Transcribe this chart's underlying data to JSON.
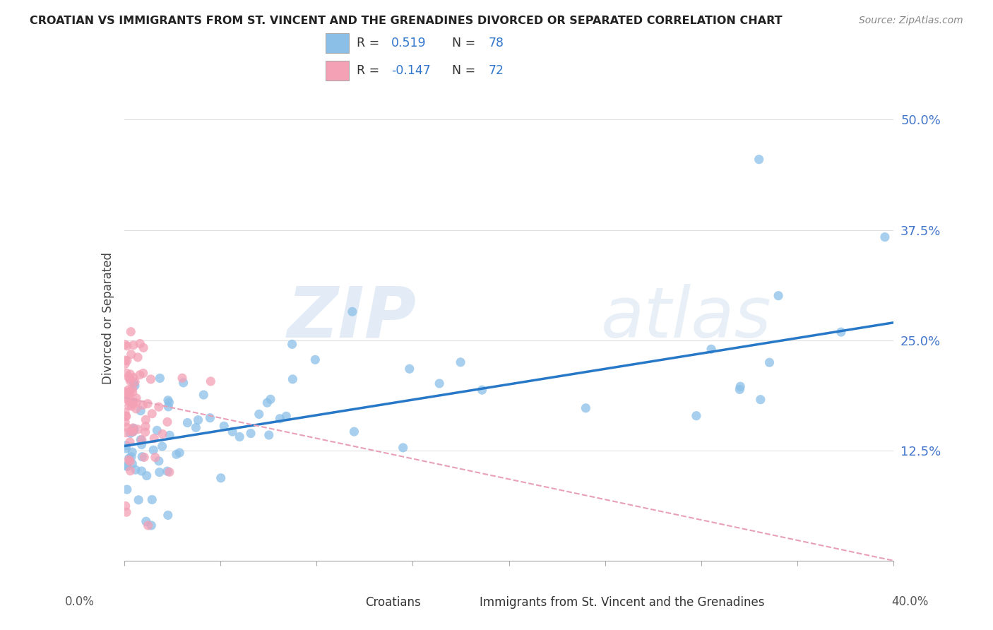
{
  "title": "CROATIAN VS IMMIGRANTS FROM ST. VINCENT AND THE GRENADINES DIVORCED OR SEPARATED CORRELATION CHART",
  "source": "Source: ZipAtlas.com",
  "ylabel": "Divorced or Separated",
  "yticks": [
    0.0,
    0.125,
    0.25,
    0.375,
    0.5
  ],
  "ytick_labels": [
    "",
    "12.5%",
    "25.0%",
    "37.5%",
    "50.0%"
  ],
  "xlim": [
    0.0,
    0.4
  ],
  "ylim": [
    0.0,
    0.55
  ],
  "legend_label1": "Croatians",
  "legend_label2": "Immigrants from St. Vincent and the Grenadines",
  "blue_color": "#8bbfe8",
  "pink_color": "#f4a0b5",
  "blue_line_color": "#2878c8",
  "pink_line_color": "#e8a0b8",
  "background_color": "#ffffff",
  "grid_color": "#e0e0e0",
  "watermark_zip": "ZIP",
  "watermark_atlas": "atlas",
  "blue_line_x0": 0.0,
  "blue_line_y0": 0.13,
  "blue_line_x1": 0.4,
  "blue_line_y1": 0.27,
  "pink_line_x0": 0.0,
  "pink_line_y0": 0.185,
  "pink_line_x1": 0.4,
  "pink_line_y1": 0.0
}
